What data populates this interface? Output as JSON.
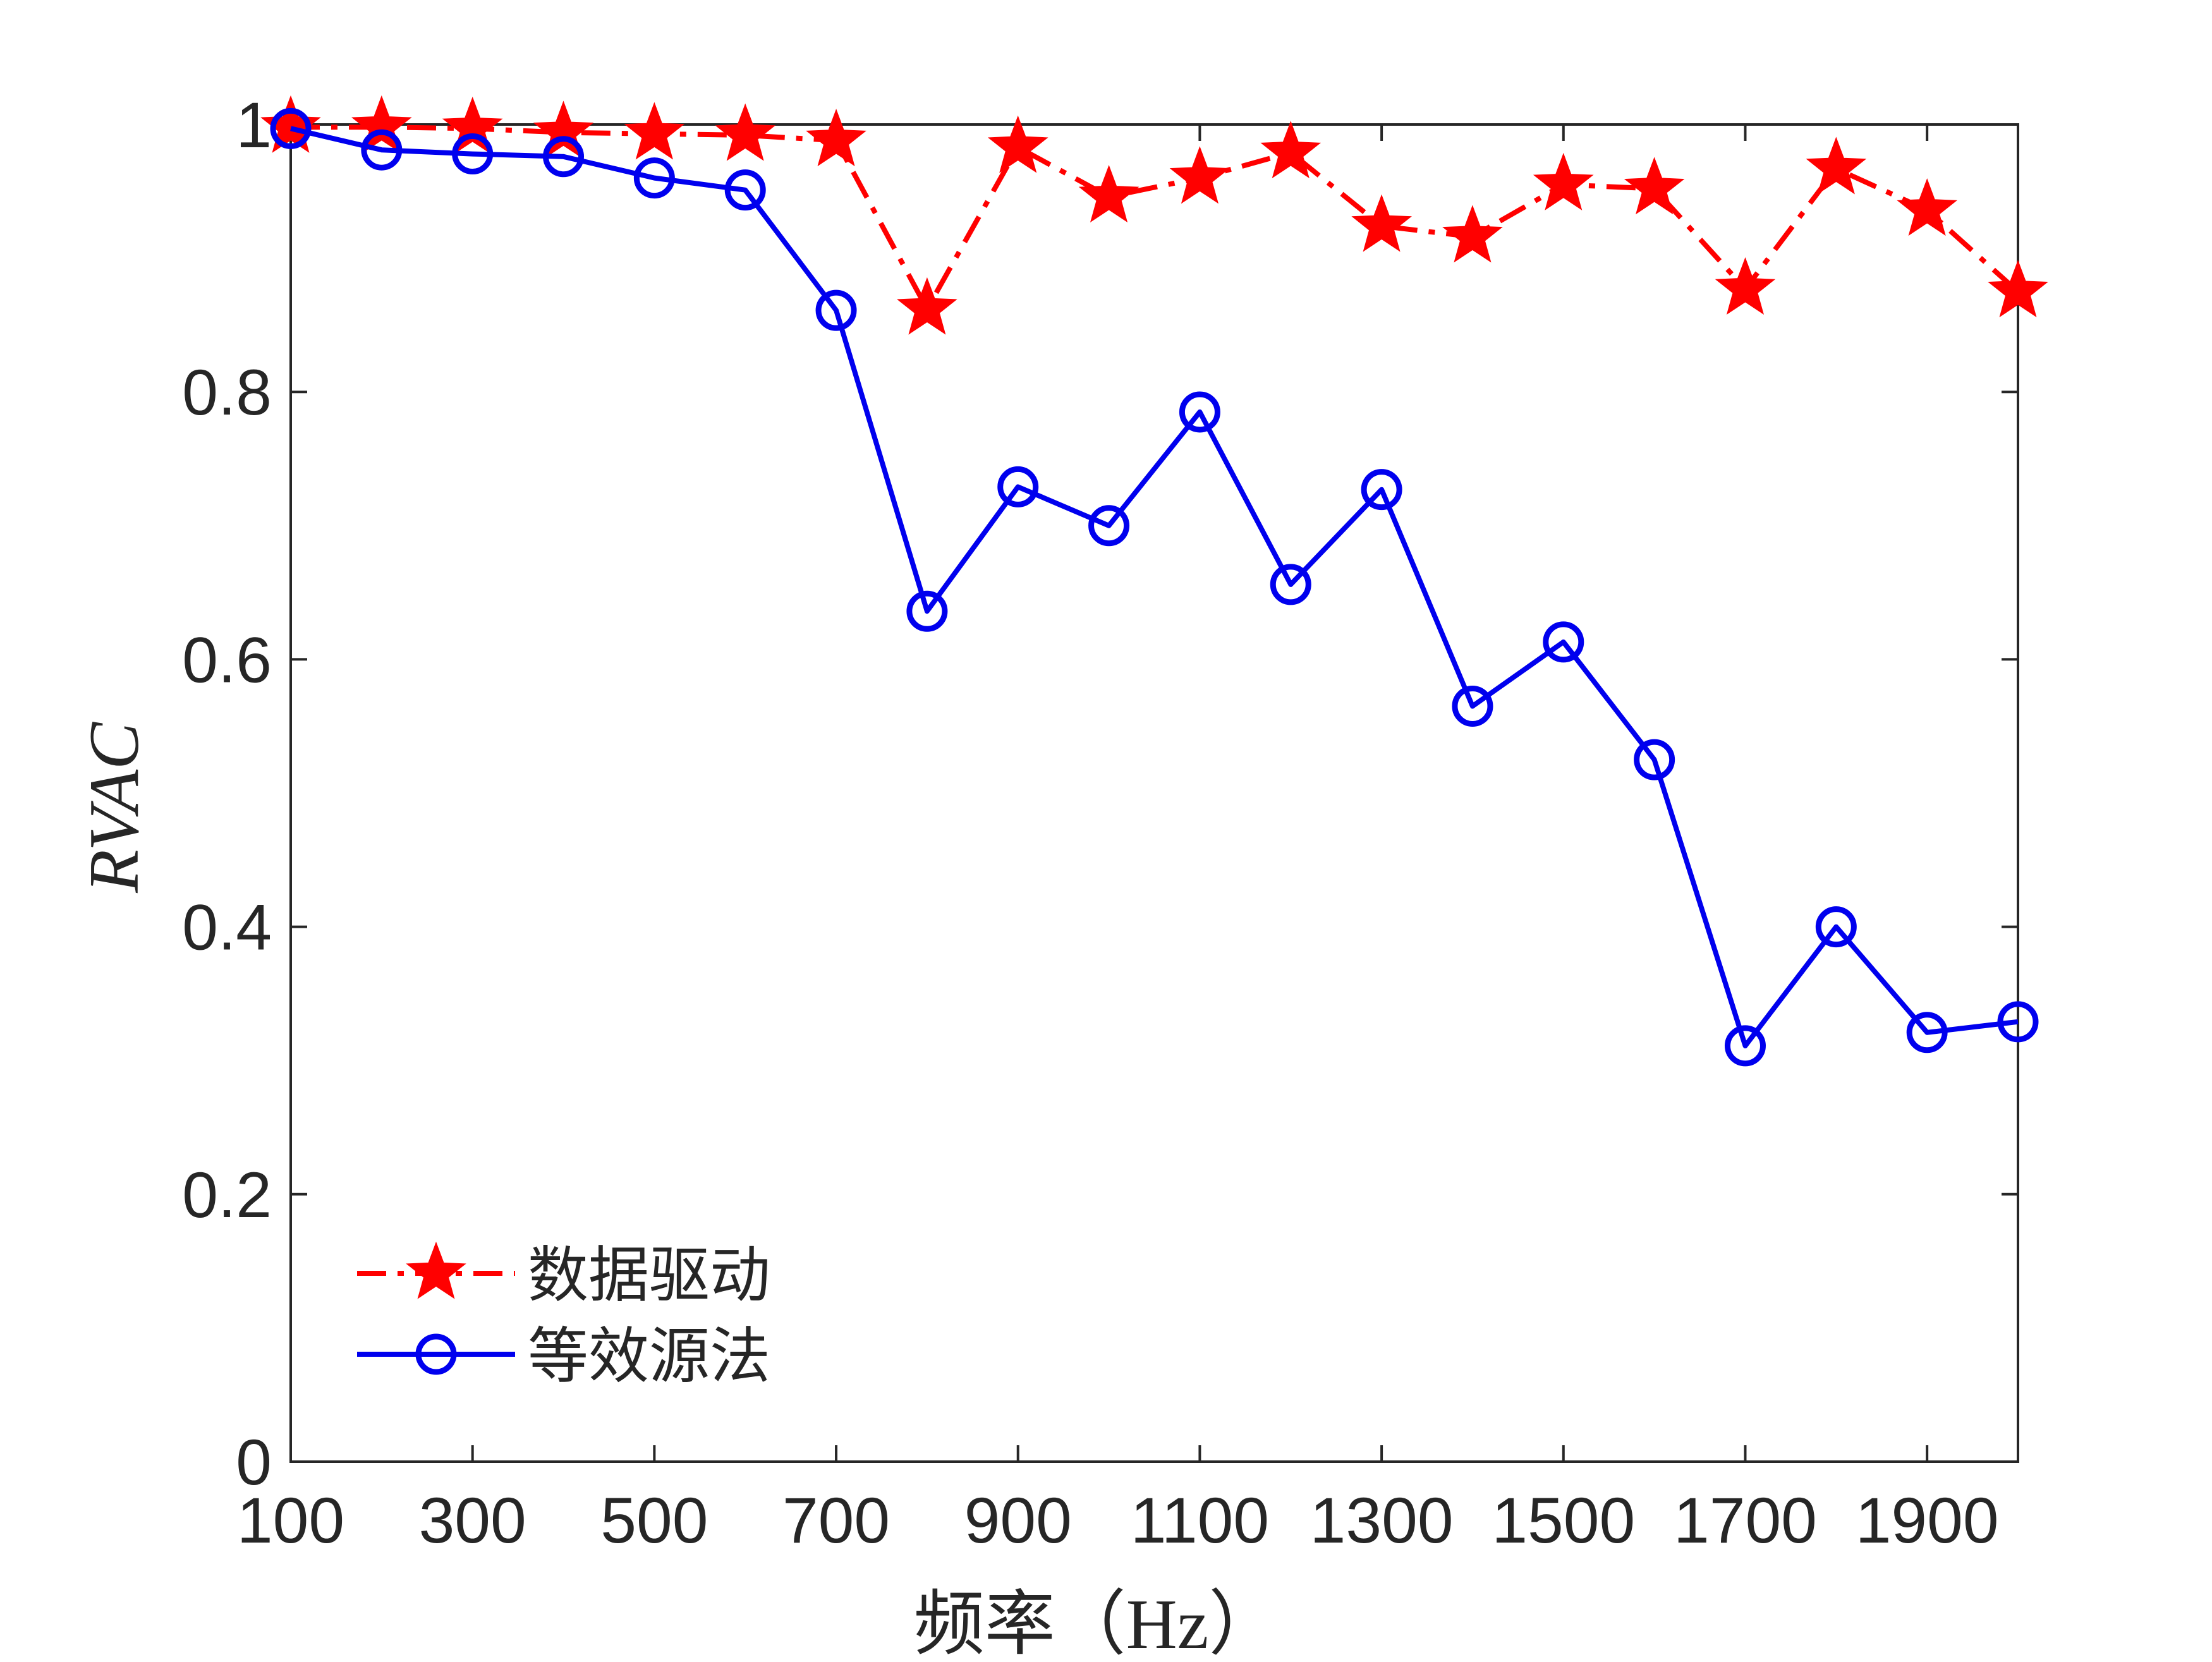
{
  "chart_data": {
    "type": "line",
    "xlabel": "频率（Hz）",
    "ylabel": "RVAC",
    "x": [
      100,
      200,
      300,
      400,
      500,
      600,
      700,
      800,
      900,
      1000,
      1100,
      1200,
      1300,
      1400,
      1500,
      1600,
      1700,
      1800,
      1900,
      2000
    ],
    "xlim": [
      100,
      2000
    ],
    "ylim": [
      0,
      1
    ],
    "x_ticks": [
      100,
      300,
      500,
      700,
      900,
      1100,
      1300,
      1500,
      1700,
      1900
    ],
    "y_ticks": [
      0,
      0.2,
      0.4,
      0.6,
      0.8,
      1
    ],
    "x_tick_labels": [
      "100",
      "300",
      "500",
      "700",
      "900",
      "1100",
      "1300",
      "1500",
      "1700",
      "1900"
    ],
    "y_tick_labels": [
      "0",
      "0.2",
      "0.4",
      "0.6",
      "0.8",
      "1"
    ],
    "grid": false,
    "legend_position": "bottom-left",
    "series": [
      {
        "name": "数据驱动",
        "color": "#ff0000",
        "line_style": "dash-dot",
        "marker": "star",
        "values": [
          0.998,
          0.998,
          0.997,
          0.994,
          0.993,
          0.992,
          0.988,
          0.862,
          0.983,
          0.946,
          0.96,
          0.979,
          0.924,
          0.916,
          0.955,
          0.952,
          0.877,
          0.967,
          0.936,
          0.875
        ]
      },
      {
        "name": "等效源法",
        "color": "#0000ee",
        "line_style": "solid",
        "marker": "circle",
        "values": [
          0.997,
          0.981,
          0.978,
          0.976,
          0.96,
          0.951,
          0.861,
          0.636,
          0.729,
          0.7,
          0.785,
          0.656,
          0.727,
          0.565,
          0.613,
          0.525,
          0.311,
          0.4,
          0.321,
          0.329
        ]
      }
    ]
  }
}
